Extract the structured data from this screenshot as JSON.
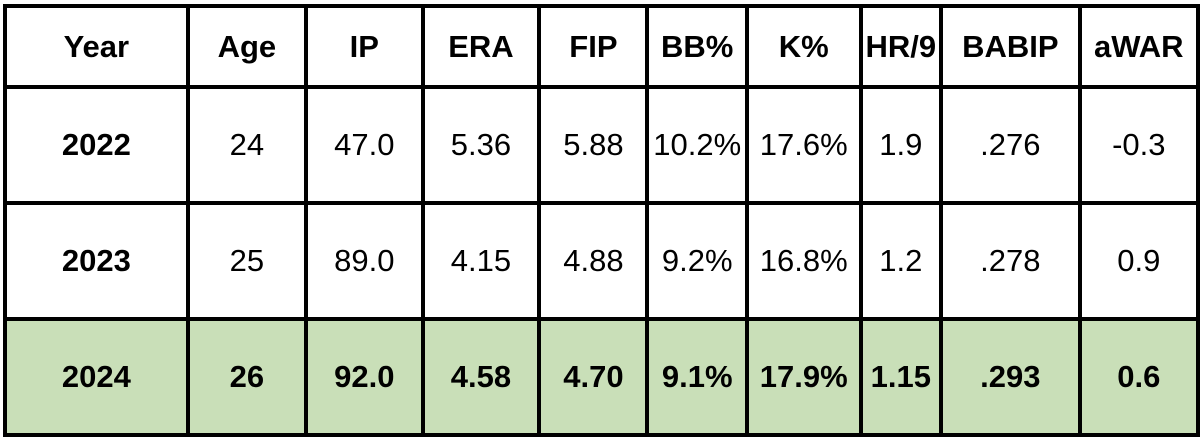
{
  "table": {
    "headers": [
      "Year",
      "Age",
      "IP",
      "ERA",
      "FIP",
      "BB%",
      "K%",
      "HR/9",
      "BABIP",
      "aWAR"
    ],
    "rows": [
      {
        "cells": [
          "2022",
          "24",
          "47.0",
          "5.36",
          "5.88",
          "10.2%",
          "17.6%",
          "1.9",
          ".276",
          "-0.3"
        ],
        "highlighted": false
      },
      {
        "cells": [
          "2023",
          "25",
          "89.0",
          "4.15",
          "4.88",
          "9.2%",
          "16.8%",
          "1.2",
          ".278",
          "0.9"
        ],
        "highlighted": false
      },
      {
        "cells": [
          "2024",
          "26",
          "92.0",
          "4.58",
          "4.70",
          "9.1%",
          "17.9%",
          "1.15",
          ".293",
          "0.6"
        ],
        "highlighted": true
      }
    ],
    "highlight_color": "#c9dfb8",
    "border_color": "#000000"
  }
}
